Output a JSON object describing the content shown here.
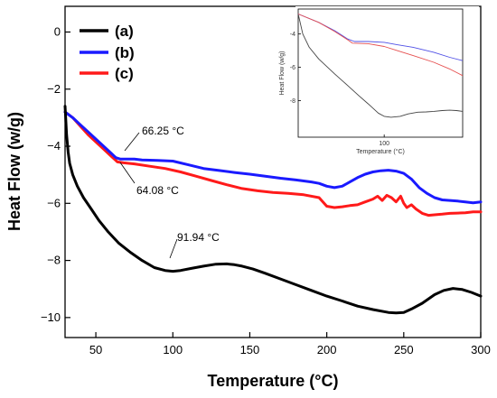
{
  "chart_data": [
    {
      "type": "line",
      "xlabel": "Temperature (°C)",
      "ylabel": "Heat Flow (w/g)",
      "xlim": [
        30,
        300
      ],
      "ylim": [
        -10.7,
        0.9
      ],
      "xticks": [
        50,
        100,
        150,
        200,
        250,
        300
      ],
      "yticks": [
        0,
        -2,
        -4,
        -6,
        -8,
        -10
      ],
      "ytick_labels": [
        "0",
        "−2",
        "−4",
        "−6",
        "−8",
        "−10"
      ],
      "legend_position": "top-left",
      "series": [
        {
          "name": "(a)",
          "color": "#000000",
          "x": [
            30,
            31,
            32,
            33,
            35,
            38,
            42,
            47,
            52,
            58,
            65,
            72,
            80,
            88,
            95,
            100,
            105,
            112,
            120,
            128,
            135,
            140,
            145,
            152,
            160,
            170,
            180,
            190,
            200,
            210,
            220,
            230,
            240,
            245,
            250,
            255,
            262,
            270,
            276,
            282,
            288,
            294,
            300
          ],
          "y": [
            -2.6,
            -3.6,
            -4.2,
            -4.6,
            -5.0,
            -5.4,
            -5.8,
            -6.2,
            -6.6,
            -7.0,
            -7.4,
            -7.7,
            -8.0,
            -8.25,
            -8.35,
            -8.38,
            -8.35,
            -8.28,
            -8.2,
            -8.13,
            -8.12,
            -8.15,
            -8.2,
            -8.3,
            -8.45,
            -8.65,
            -8.85,
            -9.05,
            -9.25,
            -9.42,
            -9.6,
            -9.72,
            -9.82,
            -9.84,
            -9.82,
            -9.7,
            -9.5,
            -9.2,
            -9.05,
            -8.98,
            -9.02,
            -9.12,
            -9.25
          ]
        },
        {
          "name": "(b)",
          "color": "#1a1aff",
          "x": [
            30,
            35,
            40,
            45,
            50,
            55,
            60,
            63,
            66,
            70,
            75,
            80,
            90,
            100,
            110,
            120,
            130,
            140,
            150,
            160,
            170,
            180,
            190,
            195,
            200,
            205,
            210,
            215,
            220,
            225,
            230,
            235,
            240,
            245,
            250,
            255,
            260,
            265,
            270,
            275,
            280,
            285,
            290,
            295,
            300
          ],
          "y": [
            -2.8,
            -3.0,
            -3.25,
            -3.5,
            -3.75,
            -4.0,
            -4.25,
            -4.4,
            -4.45,
            -4.45,
            -4.45,
            -4.48,
            -4.5,
            -4.52,
            -4.65,
            -4.78,
            -4.85,
            -4.92,
            -4.98,
            -5.05,
            -5.12,
            -5.18,
            -5.25,
            -5.3,
            -5.4,
            -5.45,
            -5.4,
            -5.25,
            -5.1,
            -4.98,
            -4.9,
            -4.86,
            -4.84,
            -4.87,
            -4.95,
            -5.15,
            -5.45,
            -5.65,
            -5.8,
            -5.88,
            -5.9,
            -5.92,
            -5.95,
            -5.98,
            -5.95
          ]
        },
        {
          "name": "(c)",
          "color": "#ff1a1a",
          "x": [
            30,
            35,
            40,
            45,
            50,
            55,
            60,
            64,
            68,
            75,
            85,
            95,
            105,
            115,
            125,
            135,
            145,
            155,
            165,
            175,
            185,
            195,
            200,
            205,
            210,
            215,
            220,
            225,
            230,
            233,
            236,
            239,
            242,
            245,
            248,
            250,
            252,
            255,
            258,
            262,
            266,
            270,
            275,
            280,
            285,
            290,
            295,
            300
          ],
          "y": [
            -2.8,
            -3.0,
            -3.3,
            -3.6,
            -3.85,
            -4.1,
            -4.35,
            -4.55,
            -4.58,
            -4.62,
            -4.7,
            -4.78,
            -4.9,
            -5.05,
            -5.2,
            -5.35,
            -5.48,
            -5.56,
            -5.62,
            -5.65,
            -5.7,
            -5.8,
            -6.1,
            -6.15,
            -6.12,
            -6.08,
            -6.05,
            -5.95,
            -5.85,
            -5.75,
            -5.9,
            -5.72,
            -5.8,
            -5.95,
            -5.75,
            -6.0,
            -6.15,
            -6.05,
            -6.2,
            -6.35,
            -6.42,
            -6.4,
            -6.38,
            -6.35,
            -6.34,
            -6.33,
            -6.3,
            -6.3
          ]
        }
      ],
      "annotations": [
        {
          "text": "66.25 °C",
          "x": 66.25
        },
        {
          "text": "64.08 °C",
          "x": 64.08
        },
        {
          "text": "91.94 °C",
          "x": 91.94
        }
      ]
    },
    {
      "type": "line",
      "xlabel": "Temperature (°C)",
      "ylabel": "Heat Flow (w/g)",
      "xscale": "log",
      "xlim": [
        30,
        300
      ],
      "ylim": [
        -10.2,
        -2.5
      ],
      "xticks": [
        100
      ],
      "yticks": [
        -4,
        -6,
        -8
      ],
      "ytick_labels": [
        "-4",
        "-6",
        "-8"
      ],
      "series": [
        {
          "color": "#444444",
          "x": [
            30,
            32,
            35,
            40,
            50,
            60,
            70,
            80,
            92,
            100,
            110,
            125,
            140,
            160,
            180,
            200,
            225,
            250,
            275,
            300
          ],
          "y": [
            -2.8,
            -4.0,
            -4.8,
            -5.5,
            -6.4,
            -7.1,
            -7.7,
            -8.2,
            -8.75,
            -8.95,
            -9.0,
            -8.95,
            -8.8,
            -8.7,
            -8.68,
            -8.65,
            -8.6,
            -8.58,
            -8.6,
            -8.65
          ]
        },
        {
          "color": "#5050e6",
          "x": [
            30,
            40,
            50,
            60,
            66,
            80,
            100,
            120,
            150,
            200,
            250,
            300
          ],
          "y": [
            -2.8,
            -3.3,
            -3.8,
            -4.3,
            -4.45,
            -4.45,
            -4.5,
            -4.65,
            -4.8,
            -5.1,
            -5.4,
            -5.6
          ]
        },
        {
          "color": "#e65050",
          "x": [
            30,
            40,
            50,
            60,
            64,
            80,
            100,
            120,
            150,
            200,
            250,
            300
          ],
          "y": [
            -2.8,
            -3.3,
            -3.85,
            -4.35,
            -4.55,
            -4.58,
            -4.75,
            -5.0,
            -5.3,
            -5.7,
            -6.1,
            -6.5
          ]
        }
      ]
    }
  ]
}
